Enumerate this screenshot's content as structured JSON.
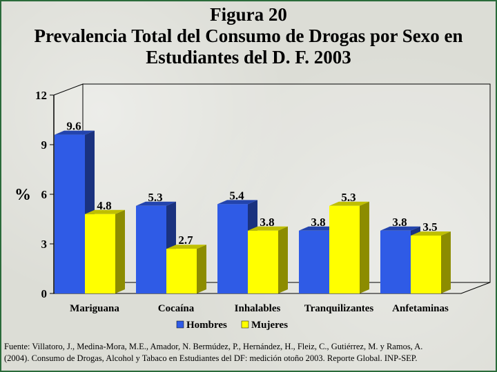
{
  "title": {
    "line1": "Figura 20",
    "line2": "Prevalencia Total del Consumo de Drogas por Sexo en",
    "line3": "Estudiantes del D. F. 2003"
  },
  "source": {
    "line1": "Fuente: Villatoro, J., Medina-Mora, M.E., Amador, N. Bermúdez, P., Hernández, H., Fleiz, C., Gutiérrez, M. y Ramos, A.",
    "line2": "(2004). Consumo de Drogas, Alcohol y Tabaco en Estudiantes del DF: medición otoño 2003. Reporte Global. INP-SEP."
  },
  "chart_data": {
    "type": "bar",
    "title": "Figura 20 Prevalencia Total del Consumo de Drogas por Sexo en Estudiantes del D. F. 2003",
    "ylabel": "%",
    "xlabel": "",
    "ylim": [
      0,
      12
    ],
    "yticks": [
      0,
      3,
      6,
      9,
      12
    ],
    "categories": [
      "Mariguana",
      "Cocaína",
      "Inhalables",
      "Tranquilizantes",
      "Anfetaminas"
    ],
    "series": [
      {
        "name": "Hombres",
        "values": [
          9.6,
          5.3,
          5.4,
          3.8,
          3.8
        ],
        "color": "#2f5be6"
      },
      {
        "name": "Mujeres",
        "values": [
          4.8,
          2.7,
          3.8,
          5.3,
          3.5
        ],
        "color": "#ffff00"
      }
    ],
    "value_labels": [
      [
        "9.6",
        "5.3",
        "5.4",
        "3.8",
        "3.8"
      ],
      [
        "4.8",
        "2.7",
        "3.8",
        "5.3",
        "3.5"
      ]
    ],
    "legend_position": "bottom",
    "grid": false,
    "style": "3d"
  }
}
